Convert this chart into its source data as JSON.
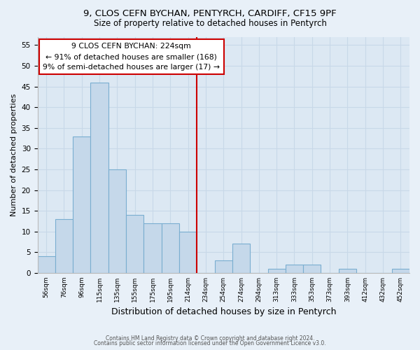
{
  "title_line1": "9, CLOS CEFN BYCHAN, PENTYRCH, CARDIFF, CF15 9PF",
  "title_line2": "Size of property relative to detached houses in Pentyrch",
  "xlabel": "Distribution of detached houses by size in Pentyrch",
  "ylabel": "Number of detached properties",
  "bin_labels": [
    "56sqm",
    "76sqm",
    "96sqm",
    "115sqm",
    "135sqm",
    "155sqm",
    "175sqm",
    "195sqm",
    "214sqm",
    "234sqm",
    "254sqm",
    "274sqm",
    "294sqm",
    "313sqm",
    "333sqm",
    "353sqm",
    "373sqm",
    "393sqm",
    "412sqm",
    "432sqm",
    "452sqm"
  ],
  "bar_heights": [
    4,
    13,
    33,
    46,
    25,
    14,
    12,
    12,
    10,
    0,
    3,
    7,
    0,
    1,
    2,
    2,
    0,
    1,
    0,
    0,
    1
  ],
  "bar_color": "#c5d8ea",
  "bar_edge_color": "#7aaed0",
  "vline_x_index": 8.5,
  "vline_color": "#cc0000",
  "annotation_text": "9 CLOS CEFN BYCHAN: 224sqm\n← 91% of detached houses are smaller (168)\n9% of semi-detached houses are larger (17) →",
  "annotation_box_color": "white",
  "annotation_box_edge_color": "#cc0000",
  "ylim": [
    0,
    57
  ],
  "yticks": [
    0,
    5,
    10,
    15,
    20,
    25,
    30,
    35,
    40,
    45,
    50,
    55
  ],
  "footer_line1": "Contains HM Land Registry data © Crown copyright and database right 2024.",
  "footer_line2": "Contains public sector information licensed under the Open Government Licence v3.0.",
  "bg_color": "#e8f0f8",
  "plot_bg_color": "#dce8f3",
  "grid_color": "#c8d8e8"
}
